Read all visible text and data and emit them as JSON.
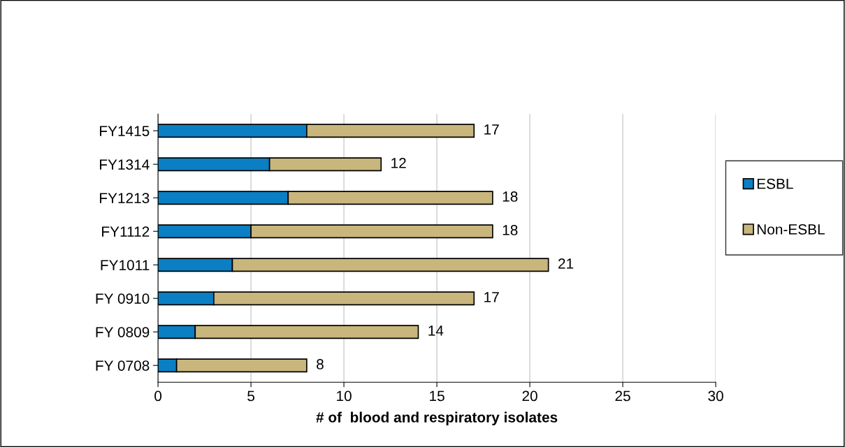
{
  "chart_data": {
    "type": "bar",
    "orientation": "horizontal",
    "stacked": true,
    "xlabel": "# of  blood and respiratory isolates",
    "categories": [
      "FY1415",
      "FY1314",
      "FY1213",
      "FY1112",
      "FY1011",
      "FY 0910",
      "FY 0809",
      "FY 0708"
    ],
    "series": [
      {
        "name": "ESBL",
        "color": "#0a7fc4",
        "values": [
          8,
          6,
          7,
          5,
          4,
          3,
          2,
          1
        ]
      },
      {
        "name": "Non-ESBL",
        "color": "#c8b67c",
        "values": [
          9,
          6,
          11,
          13,
          17,
          14,
          12,
          7
        ]
      }
    ],
    "totals": [
      "17",
      "12",
      "18",
      "18",
      "21",
      "17",
      "14",
      "8"
    ],
    "xlim": [
      0,
      30
    ],
    "xticks": [
      0,
      5,
      10,
      15,
      20,
      25,
      30
    ],
    "grid": "x",
    "legend": "right"
  }
}
